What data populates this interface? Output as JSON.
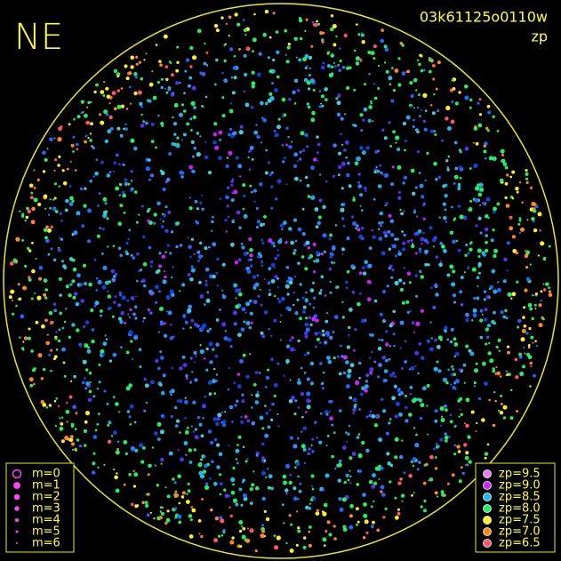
{
  "corner_label": "NE",
  "image_id": "03k61125o0110w",
  "mode": "zp",
  "magnitude_legend": [
    "m=0",
    "m=1",
    "m=2",
    "m=3",
    "m=4",
    "m=5",
    "m=6"
  ],
  "zp_legend": [
    {
      "label": "zp=9.5",
      "color": "#ee77ff"
    },
    {
      "label": "zp=9.0",
      "color": "#cc22ff"
    },
    {
      "label": "zp=8.5",
      "color": "#22bbee"
    },
    {
      "label": "zp=8.0",
      "color": "#22ee66"
    },
    {
      "label": "zp=7.5",
      "color": "#ffee22"
    },
    {
      "label": "zp=7.0",
      "color": "#ff8822"
    },
    {
      "label": "zp=6.5",
      "color": "#ff5566"
    }
  ]
}
